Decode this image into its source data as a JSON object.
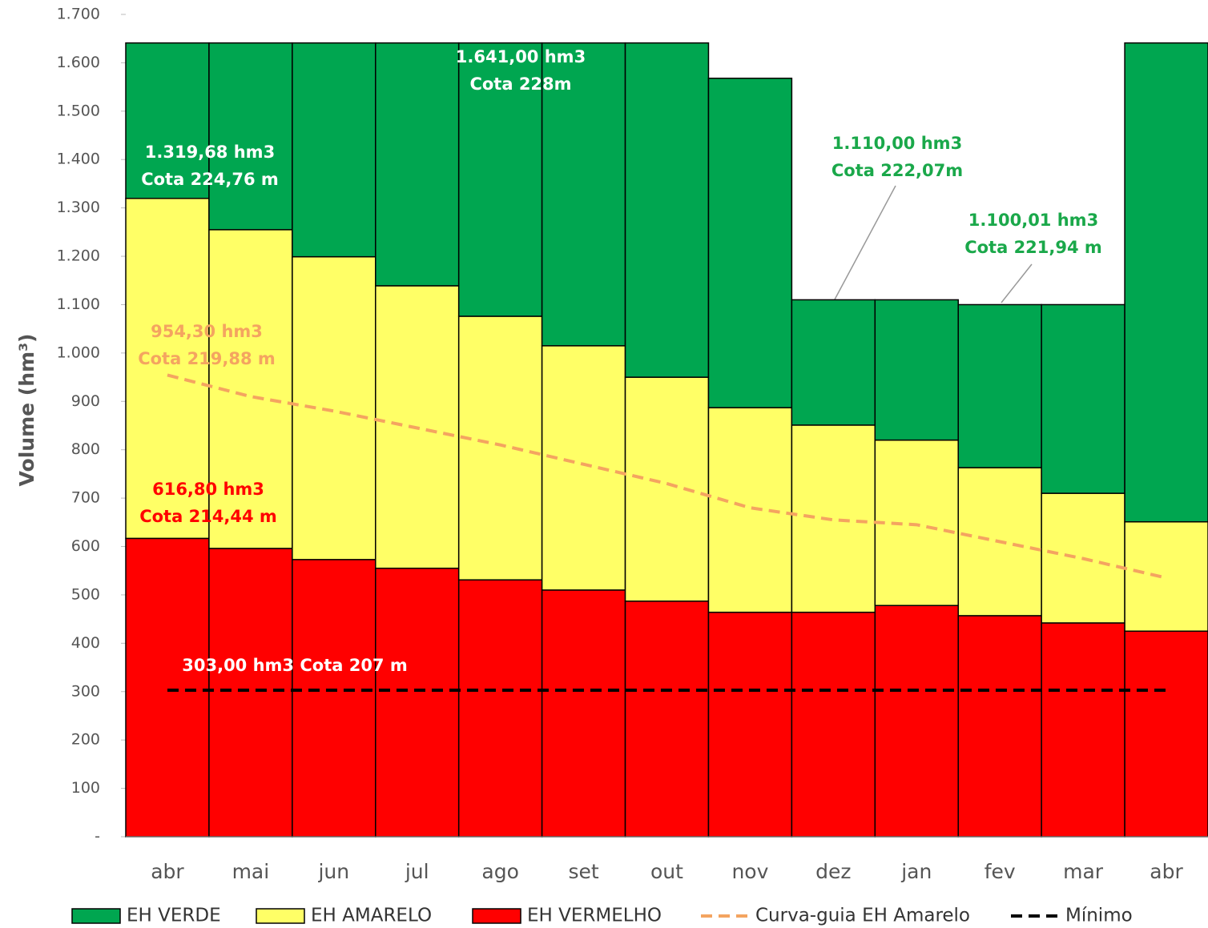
{
  "chart_data": {
    "type": "bar",
    "stacked": true,
    "y_label": "Volume (hm³)",
    "categories": [
      "abr",
      "mai",
      "jun",
      "jul",
      "ago",
      "set",
      "out",
      "nov",
      "dez",
      "jan",
      "fev",
      "mar",
      "abr"
    ],
    "series": [
      {
        "name": "EH VERMELHO",
        "type": "bar",
        "color": "#ff0000",
        "values": [
          616.8,
          596,
          573,
          555,
          531,
          510,
          487,
          464,
          464,
          478,
          457,
          442,
          425
        ]
      },
      {
        "name": "EH AMARELO",
        "type": "bar",
        "color": "#ffff66",
        "values": [
          702.88,
          659,
          626,
          584,
          545,
          505,
          463,
          423,
          387,
          342,
          306,
          268,
          226
        ]
      },
      {
        "name": "EH VERDE",
        "type": "bar",
        "color": "#00a650",
        "values": [
          321.32,
          386,
          442,
          502,
          565,
          626,
          691,
          681,
          259,
          290,
          337.01,
          390.01,
          990
        ]
      },
      {
        "name": "Curva-guia EH Amarelo",
        "type": "line",
        "style": "dashed",
        "color": "#f4a460",
        "values": [
          954.3,
          910,
          880,
          845,
          810,
          770,
          730,
          680,
          655,
          645,
          610,
          575,
          535
        ]
      },
      {
        "name": "Mínimo",
        "type": "line",
        "style": "dashed",
        "color": "#000000",
        "values": [
          303,
          303,
          303,
          303,
          303,
          303,
          303,
          303,
          303,
          303,
          303,
          303,
          303
        ]
      }
    ],
    "legend_order": [
      2,
      1,
      0,
      3,
      4
    ],
    "ylim": [
      0,
      1700
    ],
    "yticks": [
      {
        "value": 0,
        "label": "-"
      },
      100,
      200,
      300,
      400,
      500,
      600,
      700,
      800,
      900,
      {
        "value": 1000,
        "label": "1.000"
      },
      {
        "value": 1100,
        "label": "1.100"
      },
      {
        "value": 1200,
        "label": "1.200"
      },
      {
        "value": 1300,
        "label": "1.300"
      },
      {
        "value": 1400,
        "label": "1.400"
      },
      {
        "value": 1500,
        "label": "1.500"
      },
      {
        "value": 1600,
        "label": "1.600"
      },
      {
        "value": 1700,
        "label": "1.700"
      }
    ],
    "annotations": [
      {
        "text": [
          "1.641,00  hm3",
          "Cota 228m"
        ],
        "color": "#ffffff"
      },
      {
        "text": [
          "1.319,68  hm3",
          "Cota 224,76 m"
        ],
        "color": "#ffffff"
      },
      {
        "text": [
          "1.110,00  hm3",
          "Cota 222,07m"
        ],
        "color": "#1aa84a"
      },
      {
        "text": [
          "1.100,01  hm3",
          "Cota 221,94 m"
        ],
        "color": "#1aa84a"
      },
      {
        "text": [
          "954,30  hm3",
          "Cota 219,88 m"
        ],
        "color": "#f4a460"
      },
      {
        "text": [
          "616,80 hm3",
          "Cota 214,44 m"
        ],
        "color": "#ff0000"
      },
      {
        "text": [
          "303,00  hm3 Cota 207 m"
        ],
        "color": "#ffffff"
      }
    ]
  }
}
